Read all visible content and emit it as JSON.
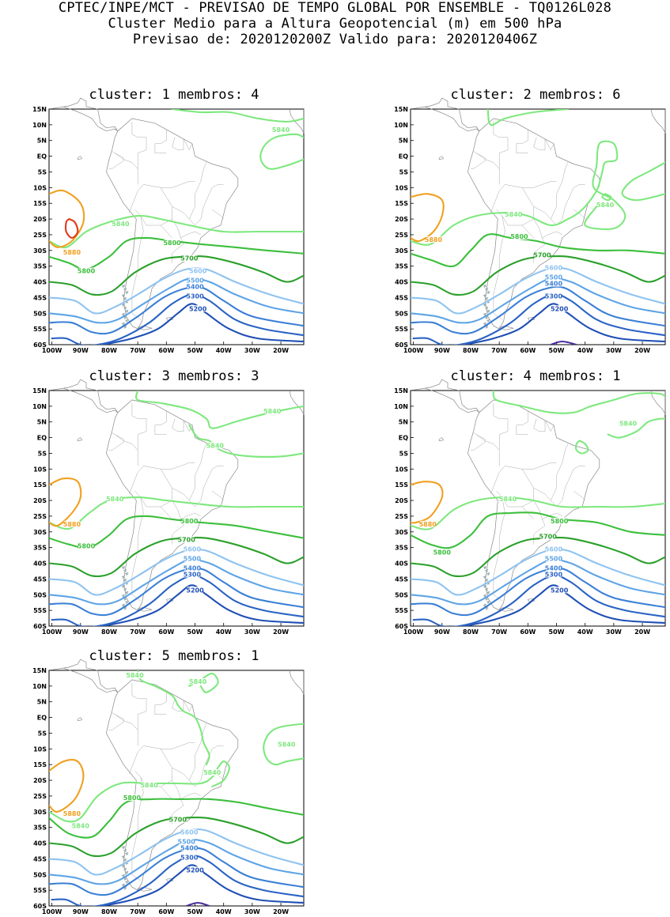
{
  "header": {
    "line1": "CPTEC/INPE/MCT - PREVISAO DE TEMPO GLOBAL POR ENSEMBLE - TQ0126L028",
    "line2": "Cluster Medio para a Altura Geopotencial (m) em 500 hPa",
    "line3": "Previsao de: 2020120200Z   Valido para: 2020120406Z"
  },
  "axis": {
    "lat_labels": [
      "15N",
      "10N",
      "5N",
      "EQ",
      "5S",
      "10S",
      "15S",
      "20S",
      "25S",
      "30S",
      "35S",
      "40S",
      "45S",
      "50S",
      "55S",
      "60S"
    ],
    "lon_labels": [
      "100W",
      "90W",
      "80W",
      "70W",
      "60W",
      "50W",
      "40W",
      "30W",
      "20W"
    ],
    "lon_values": [
      -100,
      -90,
      -80,
      -70,
      -60,
      -50,
      -40,
      -30,
      -20
    ],
    "lat_range": [
      -60,
      15
    ],
    "lon_range": [
      -101,
      -12
    ]
  },
  "colors": {
    "5200": "#1f4fb5",
    "5300": "#2a63c4",
    "5400": "#3a7fd6",
    "5500": "#5ea4e6",
    "5600": "#8fc3f0",
    "5700": "#2aa02a",
    "5800": "#3cbf3c",
    "5840": "#7ee87e",
    "5880": "#f0a020",
    "5920": "#e03a1a",
    "5100": "#4a2c9c",
    "land": "#888888"
  },
  "panels": [
    {
      "title": "cluster: 1   membros: 4",
      "labels": [
        {
          "text": "5840",
          "lon": -20,
          "lat": 8,
          "level": "5840"
        },
        {
          "text": "5840",
          "lon": -76,
          "lat": -22,
          "level": "5840"
        },
        {
          "text": "5800",
          "lon": -58,
          "lat": -28,
          "level": "5800"
        },
        {
          "text": "5880",
          "lon": -93,
          "lat": -31,
          "level": "5880"
        },
        {
          "text": "5800",
          "lon": -88,
          "lat": -37,
          "level": "5800"
        },
        {
          "text": "5700",
          "lon": -52,
          "lat": -33,
          "level": "5700"
        },
        {
          "text": "5600",
          "lon": -49,
          "lat": -37,
          "level": "5600"
        },
        {
          "text": "5500",
          "lon": -50,
          "lat": -40,
          "level": "5500"
        },
        {
          "text": "5400",
          "lon": -50,
          "lat": -42,
          "level": "5400"
        },
        {
          "text": "5300",
          "lon": -50,
          "lat": -45,
          "level": "5300"
        },
        {
          "text": "5200",
          "lon": -49,
          "lat": -49,
          "level": "5200"
        }
      ]
    },
    {
      "title": "cluster: 2   membros: 6",
      "labels": [
        {
          "text": "5840",
          "lon": -33,
          "lat": -16,
          "level": "5840"
        },
        {
          "text": "5840",
          "lon": -65,
          "lat": -19,
          "level": "5840"
        },
        {
          "text": "5800",
          "lon": -63,
          "lat": -26,
          "level": "5800"
        },
        {
          "text": "5880",
          "lon": -93,
          "lat": -27,
          "level": "5880"
        },
        {
          "text": "5700",
          "lon": -55,
          "lat": -32,
          "level": "5700"
        },
        {
          "text": "5600",
          "lon": -51,
          "lat": -36,
          "level": "5600"
        },
        {
          "text": "5500",
          "lon": -51,
          "lat": -39,
          "level": "5500"
        },
        {
          "text": "5400",
          "lon": -51,
          "lat": -41,
          "level": "5400"
        },
        {
          "text": "5300",
          "lon": -51,
          "lat": -45,
          "level": "5300"
        },
        {
          "text": "5200",
          "lon": -49,
          "lat": -49,
          "level": "5200"
        }
      ]
    },
    {
      "title": "cluster: 3   membros: 3",
      "labels": [
        {
          "text": "5840",
          "lon": -23,
          "lat": 8,
          "level": "5840"
        },
        {
          "text": "5840",
          "lon": -43,
          "lat": -3,
          "level": "5840"
        },
        {
          "text": "5840",
          "lon": -78,
          "lat": -20,
          "level": "5840"
        },
        {
          "text": "5800",
          "lon": -52,
          "lat": -27,
          "level": "5800"
        },
        {
          "text": "5880",
          "lon": -93,
          "lat": -28,
          "level": "5880"
        },
        {
          "text": "5800",
          "lon": -88,
          "lat": -35,
          "level": "5800"
        },
        {
          "text": "5700",
          "lon": -53,
          "lat": -33,
          "level": "5700"
        },
        {
          "text": "5600",
          "lon": -51,
          "lat": -36,
          "level": "5600"
        },
        {
          "text": "5500",
          "lon": -51,
          "lat": -39,
          "level": "5500"
        },
        {
          "text": "5400",
          "lon": -51,
          "lat": -42,
          "level": "5400"
        },
        {
          "text": "5300",
          "lon": -51,
          "lat": -44,
          "level": "5300"
        },
        {
          "text": "5200",
          "lon": -50,
          "lat": -49,
          "level": "5200"
        }
      ]
    },
    {
      "title": "cluster: 4   membros: 1",
      "labels": [
        {
          "text": "5840",
          "lon": -25,
          "lat": 4,
          "level": "5840"
        },
        {
          "text": "5840",
          "lon": -67,
          "lat": -20,
          "level": "5840"
        },
        {
          "text": "5800",
          "lon": -49,
          "lat": -27,
          "level": "5800"
        },
        {
          "text": "5880",
          "lon": -95,
          "lat": -28,
          "level": "5880"
        },
        {
          "text": "5800",
          "lon": -90,
          "lat": -37,
          "level": "5800"
        },
        {
          "text": "5700",
          "lon": -53,
          "lat": -32,
          "level": "5700"
        },
        {
          "text": "5600",
          "lon": -51,
          "lat": -36,
          "level": "5600"
        },
        {
          "text": "5500",
          "lon": -51,
          "lat": -39,
          "level": "5500"
        },
        {
          "text": "5400",
          "lon": -51,
          "lat": -42,
          "level": "5400"
        },
        {
          "text": "5300",
          "lon": -51,
          "lat": -44,
          "level": "5300"
        },
        {
          "text": "5200",
          "lon": -49,
          "lat": -49,
          "level": "5200"
        }
      ]
    },
    {
      "title": "cluster: 5   membros: 1",
      "labels": [
        {
          "text": "5840",
          "lon": -71,
          "lat": 13,
          "level": "5840"
        },
        {
          "text": "5840",
          "lon": -49,
          "lat": 11,
          "level": "5840"
        },
        {
          "text": "5840",
          "lon": -18,
          "lat": -9,
          "level": "5840"
        },
        {
          "text": "5840",
          "lon": -44,
          "lat": -18,
          "level": "5840"
        },
        {
          "text": "5840",
          "lon": -66,
          "lat": -22,
          "level": "5840"
        },
        {
          "text": "5800",
          "lon": -72,
          "lat": -26,
          "level": "5800"
        },
        {
          "text": "5880",
          "lon": -93,
          "lat": -31,
          "level": "5880"
        },
        {
          "text": "5840",
          "lon": -90,
          "lat": -35,
          "level": "5840"
        },
        {
          "text": "5700",
          "lon": -56,
          "lat": -33,
          "level": "5700"
        },
        {
          "text": "5600",
          "lon": -52,
          "lat": -37,
          "level": "5600"
        },
        {
          "text": "5500",
          "lon": -53,
          "lat": -40,
          "level": "5500"
        },
        {
          "text": "5400",
          "lon": -52,
          "lat": -42,
          "level": "5400"
        },
        {
          "text": "5300",
          "lon": -52,
          "lat": -45,
          "level": "5300"
        },
        {
          "text": "5200",
          "lon": -50,
          "lat": -49,
          "level": "5200"
        }
      ]
    }
  ]
}
